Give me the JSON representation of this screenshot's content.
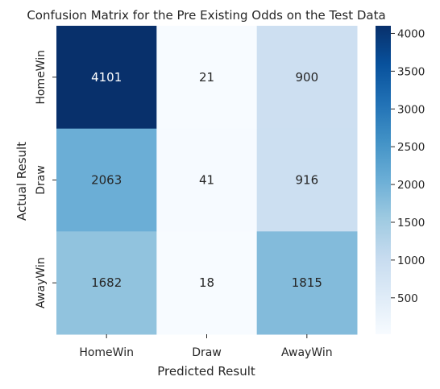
{
  "chart_data": {
    "type": "heatmap",
    "title": "Confusion Matrix for the Pre Existing Odds on the Test Data",
    "xlabel": "Predicted Result",
    "ylabel": "Actual Result",
    "x_categories": [
      "HomeWin",
      "Draw",
      "AwayWin"
    ],
    "y_categories": [
      "HomeWin",
      "Draw",
      "AwayWin"
    ],
    "values": [
      [
        4101,
        21,
        900
      ],
      [
        2063,
        41,
        916
      ],
      [
        1682,
        18,
        1815
      ]
    ],
    "colormap": "Blues",
    "colorbar": {
      "range": [
        18,
        4101
      ],
      "ticks": [
        500,
        1000,
        1500,
        2000,
        2500,
        3000,
        3500,
        4000
      ]
    }
  }
}
